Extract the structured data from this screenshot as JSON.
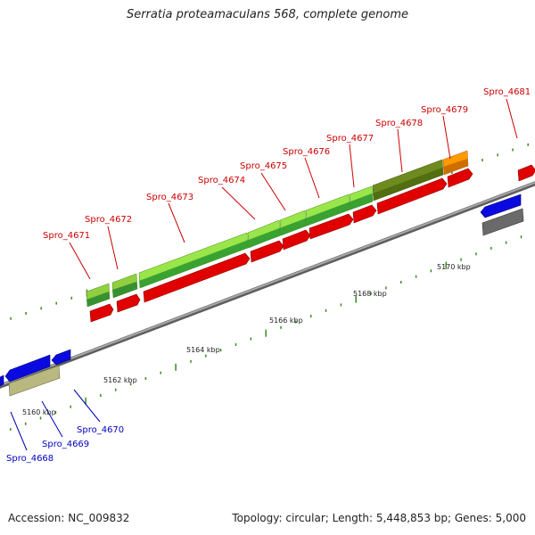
{
  "title": "Serratia proteamaculans 568, complete genome",
  "footer": {
    "accession": "Accession: NC_009832",
    "summary": "Topology: circular; Length: 5,448,853 bp; Genes: 5,000"
  },
  "colors": {
    "backbone": "#8c8c8c",
    "dots": "#3a8a1a",
    "red_gene": "#e00000",
    "blue_gene": "#0a0ae0",
    "label_red": "#cc0000",
    "label_blue": "#0000bb"
  },
  "ticks": [
    "5160 kbp",
    "5162 kbp",
    "5164 kbp",
    "5166 kbp",
    "5168 kbp",
    "5170 kbp"
  ],
  "gene_labels": [
    {
      "text": "Spro_4668",
      "side": "bottom",
      "color": "blue"
    },
    {
      "text": "Spro_4669",
      "side": "bottom",
      "color": "blue"
    },
    {
      "text": "Spro_4670",
      "side": "bottom",
      "color": "blue"
    },
    {
      "text": "Spro_4671",
      "side": "top",
      "color": "red"
    },
    {
      "text": "Spro_4672",
      "side": "top",
      "color": "red"
    },
    {
      "text": "Spro_4673",
      "side": "top",
      "color": "red"
    },
    {
      "text": "Spro_4674",
      "side": "top",
      "color": "red"
    },
    {
      "text": "Spro_4675",
      "side": "top",
      "color": "red"
    },
    {
      "text": "Spro_4676",
      "side": "top",
      "color": "red"
    },
    {
      "text": "Spro_4677",
      "side": "top",
      "color": "red"
    },
    {
      "text": "Spro_4678",
      "side": "top",
      "color": "red"
    },
    {
      "text": "Spro_4679",
      "side": "top",
      "color": "red"
    },
    {
      "text": "Spro_4681",
      "side": "top",
      "color": "red"
    }
  ]
}
